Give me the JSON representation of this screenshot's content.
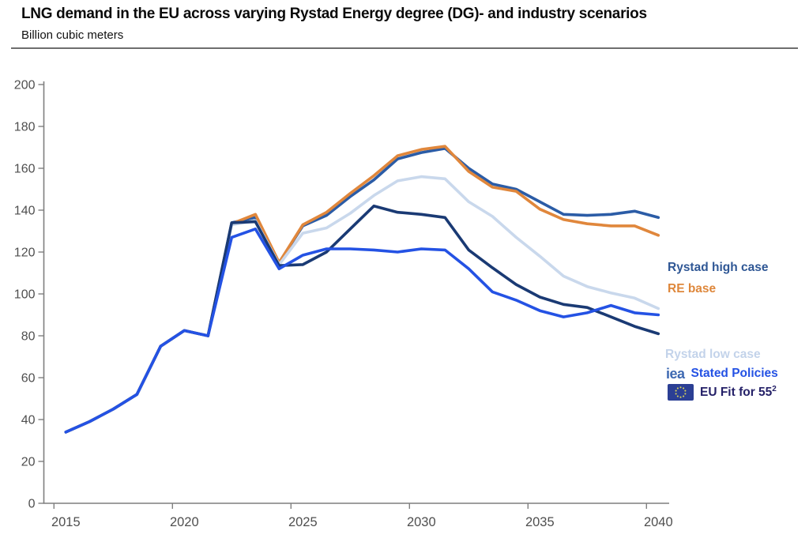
{
  "header": {
    "title": "LNG demand in the EU across varying Rystad Energy degree (DG)- and industry scenarios",
    "subtitle": "Billion cubic meters"
  },
  "chart_data": {
    "type": "line",
    "x": [
      2015,
      2016,
      2017,
      2018,
      2019,
      2020,
      2021,
      2022,
      2023,
      2024,
      2025,
      2026,
      2027,
      2028,
      2029,
      2030,
      2031,
      2032,
      2033,
      2034,
      2035,
      2036,
      2037,
      2038,
      2039,
      2040
    ],
    "series": [
      {
        "name": "Rystad high case",
        "color": "#2B5CA6",
        "values": [
          34,
          39,
          45,
          52,
          75,
          82.5,
          80,
          134,
          136.5,
          115,
          132.5,
          137.5,
          146.5,
          154.5,
          164.5,
          167.5,
          169.5,
          160,
          152.5,
          150,
          144,
          138,
          137.5,
          138,
          139.5,
          136.5
        ]
      },
      {
        "name": "RE base",
        "color": "#E0873C",
        "values": [
          34,
          39,
          45,
          52,
          75,
          82.5,
          80,
          133.5,
          138,
          115,
          133,
          139,
          148,
          156.5,
          166,
          169,
          170.5,
          158.5,
          151,
          149,
          140.5,
          135.5,
          133.5,
          132.5,
          132.5,
          128
        ]
      },
      {
        "name": "Rystad low case",
        "color": "#C9D8EC",
        "values": [
          34,
          39,
          45,
          52,
          75,
          82.5,
          80,
          133,
          135,
          114,
          129,
          131.5,
          138.5,
          147,
          154,
          156,
          155,
          144,
          137,
          127,
          118,
          108.5,
          103.5,
          100.5,
          98,
          93
        ]
      },
      {
        "name": "EU Fit for 55",
        "color": "#1A3A74",
        "values": [
          34,
          39,
          45,
          52,
          75,
          82.5,
          80,
          134,
          134.5,
          113.5,
          114,
          120,
          131,
          142,
          139,
          138,
          136.5,
          121,
          112.5,
          104.5,
          98.5,
          95,
          93.5,
          89,
          84.5,
          81
        ]
      },
      {
        "name": "IEA Stated Policies",
        "color": "#2452E4",
        "values": [
          34,
          39,
          45,
          52,
          75,
          82.5,
          80,
          127,
          131,
          112,
          118.5,
          121.5,
          121.5,
          121,
          120,
          121.5,
          121,
          112,
          101,
          97,
          92,
          89,
          91,
          94.5,
          91,
          90
        ]
      }
    ],
    "ylabel": "Billion cubic meters",
    "ylim": [
      0,
      200
    ],
    "ytick_step": 20,
    "xticks": [
      2015,
      2020,
      2025,
      2030,
      2035,
      2040
    ],
    "grid": false,
    "legend_position": "right-of-lines",
    "axis_color": "#7f7f7f",
    "tick_label_color": "#4f4f4f"
  },
  "legend": {
    "high_label": "Rystad high case",
    "high_color": "#2F5795",
    "base_label": "RE base",
    "base_color": "#DE873B",
    "low_label": "Rystad low case",
    "low_color": "#C3D3EA",
    "iea_logo_text": "iea",
    "iea_logo_color": "#3E69B2",
    "iea_label": "Stated Policies",
    "iea_color": "#2452E4",
    "eu_label": "EU Fit for 55",
    "eu_superscript": "2",
    "eu_color": "#252168",
    "eu_flag_bg": "#2B3F94",
    "eu_flag_star_color": "#D8D25A"
  }
}
